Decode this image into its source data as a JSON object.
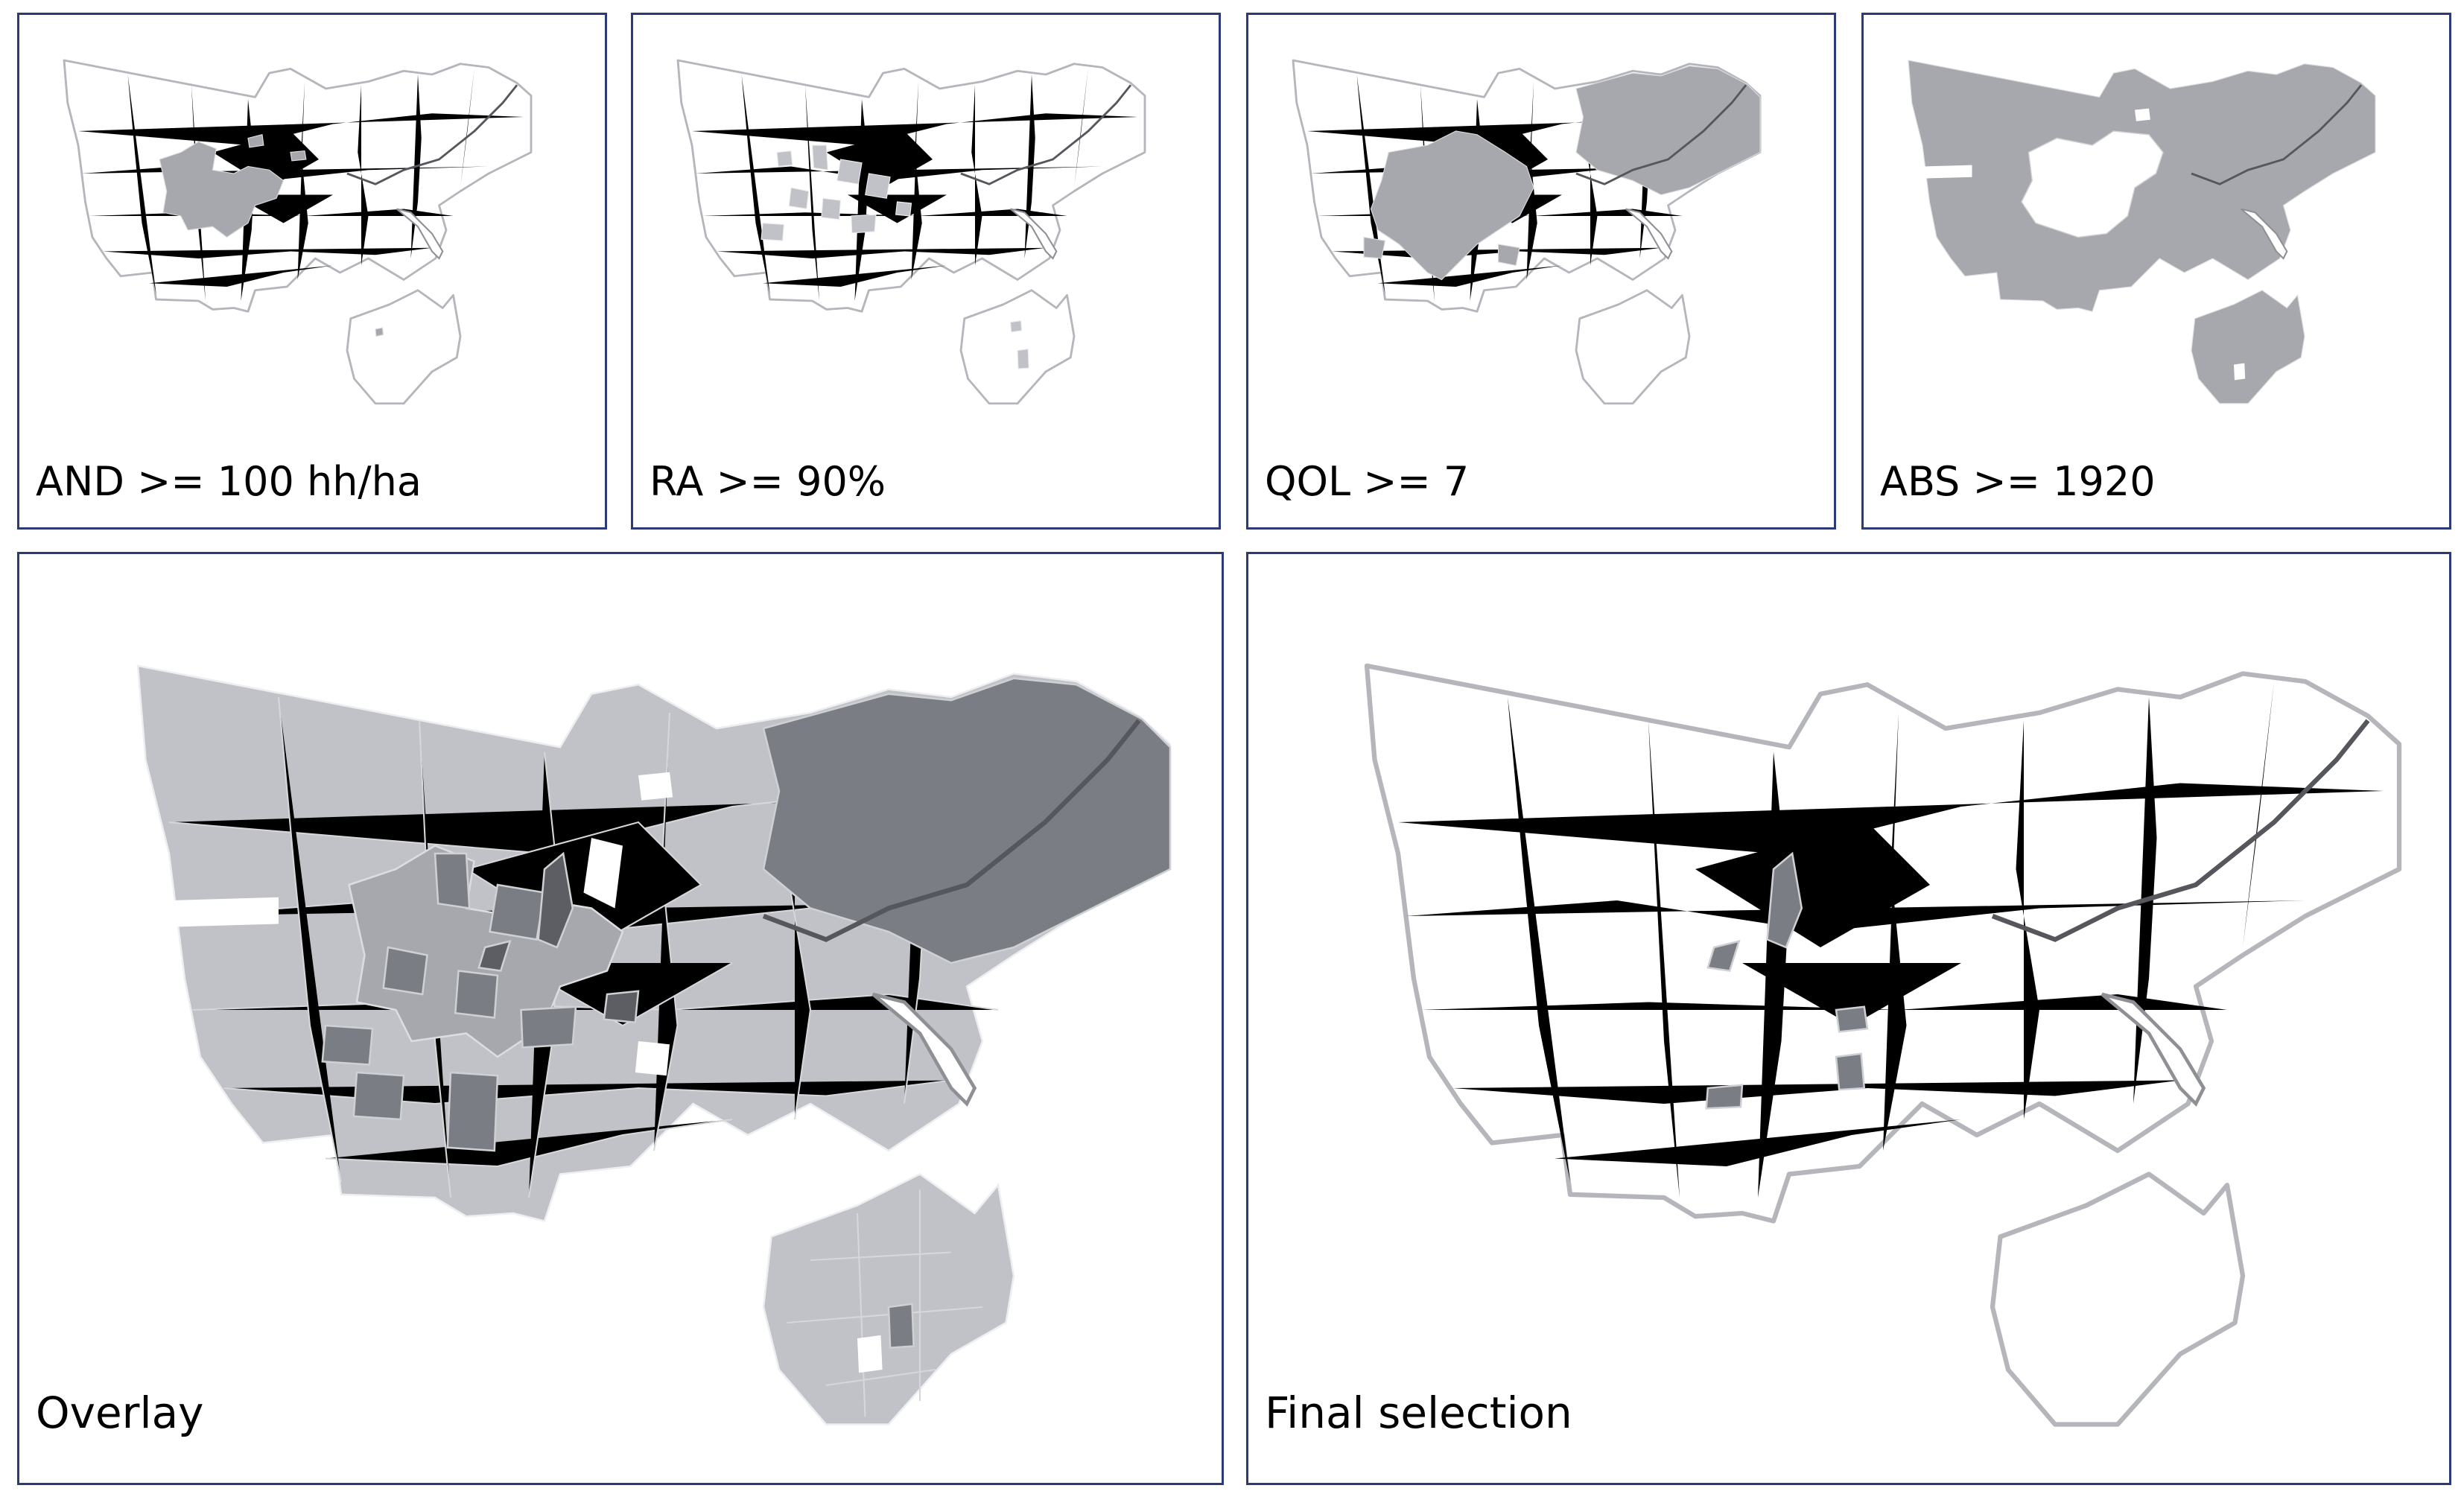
{
  "panels": {
    "and": {
      "label": "AND >= 100 hh/ha"
    },
    "ra": {
      "label": "RA >= 90%"
    },
    "qol": {
      "label": "QOL >= 7"
    },
    "abs": {
      "label": "ABS >= 1920"
    },
    "overlay": {
      "label": "Overlay"
    },
    "final": {
      "label": "Final selection"
    }
  },
  "colors": {
    "border": "#2d3a78",
    "district_outline": "#b4b6bc",
    "selected_light": "#c0c2c7",
    "selected_mid": "#a6a8ae",
    "selected_dark": "#7b7d84",
    "selected_darkest": "#5c5e64"
  }
}
